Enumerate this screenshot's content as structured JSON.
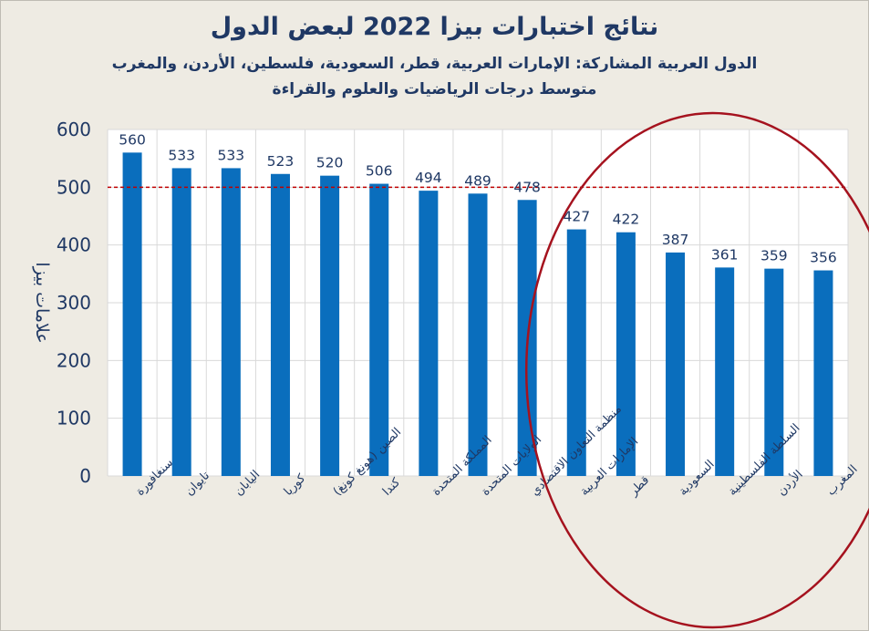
{
  "chart_data": {
    "type": "bar",
    "title": "نتائج اختبارات بيزا 2022 لبعض الدول",
    "subtitle": "الدول العربية المشاركة: الإمارات العربية، قطر، السعودية، فلسطين، الأردن، والمغرب",
    "subtitle2": "متوسط درجات الرياضيات والعلوم والقراءة",
    "ylabel": "علامات بيزا",
    "xlabel": "",
    "ylim": [
      0,
      600
    ],
    "yticks": [
      0,
      100,
      200,
      300,
      400,
      500,
      600
    ],
    "grid": true,
    "reference_line": 500,
    "categories": [
      "سنغافورة",
      "تايوان",
      "اليابان",
      "كوريا",
      "الصين (هونغ كونغ)",
      "كندا",
      "المملكة المتحدة",
      "الولايات المتحدة",
      "منظمة التعاون الاقتصادي",
      "الإمارات العربية",
      "قطر",
      "السعودية",
      "السلطة الفلسطينية",
      "الأردن",
      "المغرب"
    ],
    "values": [
      560,
      533,
      533,
      523,
      520,
      506,
      494,
      489,
      478,
      427,
      422,
      387,
      361,
      359,
      356
    ],
    "highlighted_categories": [
      "الإمارات العربية",
      "قطر",
      "السعودية",
      "السلطة الفلسطينية",
      "الأردن",
      "المغرب"
    ]
  },
  "colors": {
    "background": "#eeebe3",
    "plot_area": "#ffffff",
    "bar": "#0a6ebd",
    "text": "#1f3864",
    "gridline": "#d9d9d9",
    "reference_line": "#c00000",
    "highlight_ellipse": "#a5121e"
  }
}
